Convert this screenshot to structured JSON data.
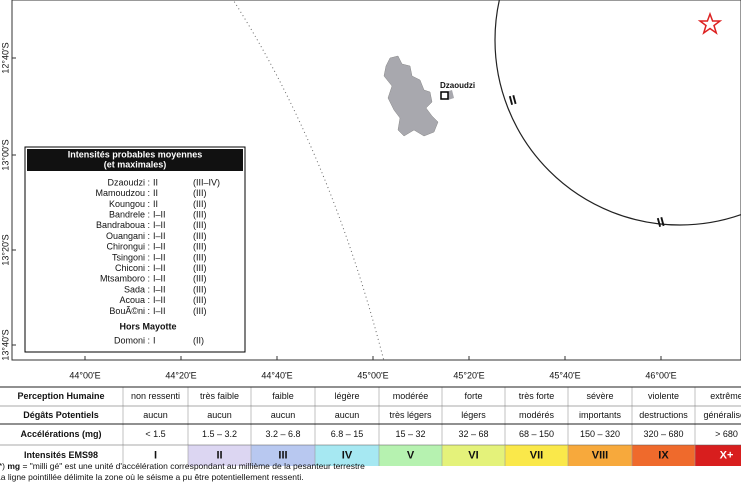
{
  "map": {
    "lat_labels": [
      "12°40'S",
      "13°00'S",
      "13°20'S",
      "13°40'S"
    ],
    "lon_labels": [
      "44°00'E",
      "44°20'E",
      "44°40'E",
      "45°00'E",
      "45°20'E",
      "45°40'E",
      "46°00'E"
    ],
    "place_label": "Dzaoudzi",
    "intensity_marks": [
      "II",
      "II"
    ]
  },
  "legend": {
    "title_lines": [
      "Intensités probables moyennes",
      "(et maximales)"
    ],
    "rows": [
      {
        "place": "Dzaoudzi :",
        "mean": "II",
        "max": "(III–IV)"
      },
      {
        "place": "Mamoudzou :",
        "mean": "II",
        "max": "(III)"
      },
      {
        "place": "Koungou :",
        "mean": "II",
        "max": "(III)"
      },
      {
        "place": "Bandrele :",
        "mean": "I–II",
        "max": "(III)"
      },
      {
        "place": "Bandraboua :",
        "mean": "I–II",
        "max": "(III)"
      },
      {
        "place": "Ouangani :",
        "mean": "I–II",
        "max": "(III)"
      },
      {
        "place": "Chirongui :",
        "mean": "I–II",
        "max": "(III)"
      },
      {
        "place": "Tsingoni :",
        "mean": "I–II",
        "max": "(III)"
      },
      {
        "place": "Chiconi :",
        "mean": "I–II",
        "max": "(III)"
      },
      {
        "place": "Mtsamboro :",
        "mean": "I–II",
        "max": "(III)"
      },
      {
        "place": "Sada :",
        "mean": "I–II",
        "max": "(III)"
      },
      {
        "place": "Acoua :",
        "mean": "I–II",
        "max": "(III)"
      },
      {
        "place": "BouÃ©ni :",
        "mean": "I–II",
        "max": "(III)"
      }
    ],
    "section": "Hors Mayotte",
    "other_rows": [
      {
        "place": "Domoni :",
        "mean": "I",
        "max": "(II)"
      }
    ]
  },
  "table": {
    "rows": [
      {
        "label": "Perception Humaine",
        "cells": [
          "non ressenti",
          "très faible",
          "faible",
          "légère",
          "modérée",
          "forte",
          "très forte",
          "sévère",
          "violente",
          "extrême"
        ]
      },
      {
        "label": "Dégâts Potentiels",
        "cells": [
          "aucun",
          "aucun",
          "aucun",
          "aucun",
          "très légers",
          "légers",
          "modérés",
          "importants",
          "destructions",
          "généralisés"
        ]
      },
      {
        "label": "Accélérations (mg)",
        "cells": [
          "< 1.5",
          "1.5 – 3.2",
          "3.2 – 6.8",
          "6.8 – 15",
          "15 – 32",
          "32 – 68",
          "68 – 150",
          "150 – 320",
          "320 – 680",
          "> 680"
        ]
      },
      {
        "label": "Intensités EMS98",
        "cells": [
          "I",
          "II",
          "III",
          "IV",
          "V",
          "VI",
          "VII",
          "VIII",
          "IX",
          "X+"
        ]
      }
    ]
  },
  "footnotes": [
    [
      "(*) ",
      "mg",
      " = \"milli gé\" est une unité d'accélération correspondant au millième de la pesanteur terrestre"
    ],
    [
      "La ligne pointillée délimite la zone où le séisme a pu être potentiellement ressenti."
    ]
  ]
}
